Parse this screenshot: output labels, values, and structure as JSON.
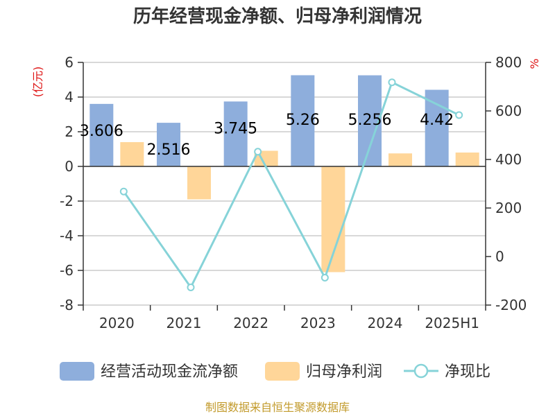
{
  "chart_data": {
    "type": "bar",
    "title": "历年经营现金净额、归母净利润情况",
    "categories": [
      "2020",
      "2021",
      "2022",
      "2023",
      "2024",
      "2025H1"
    ],
    "left_axis": {
      "unit": "(亿元)",
      "min": -8,
      "max": 6,
      "ticks": [
        "6",
        "4",
        "2",
        "0",
        "-2",
        "-4",
        "-6",
        "-8"
      ]
    },
    "right_axis": {
      "unit": "%",
      "min": -200,
      "max": 800,
      "ticks": [
        "800",
        "600",
        "400",
        "200",
        "0",
        "-200"
      ]
    },
    "series": [
      {
        "name": "经营活动现金流净额",
        "type": "bar",
        "axis": "left",
        "color": "#8eaedc",
        "values": [
          3.606,
          2.516,
          3.745,
          5.26,
          5.256,
          4.42
        ],
        "labels": [
          "3.606",
          "2.516",
          "3.745",
          "5.26",
          "5.256",
          "4.42"
        ]
      },
      {
        "name": "归母净利润",
        "type": "bar",
        "axis": "left",
        "color": "#ffd699",
        "values": [
          1.4,
          -1.9,
          0.9,
          -6.1,
          0.75,
          0.8
        ]
      },
      {
        "name": "净现比",
        "type": "line",
        "axis": "right",
        "color": "#86d3d8",
        "values": [
          268,
          -127,
          432,
          -87,
          718,
          583
        ]
      }
    ],
    "grid": true,
    "legend_position": "bottom"
  },
  "source": "制图数据来自恒生聚源数据库"
}
